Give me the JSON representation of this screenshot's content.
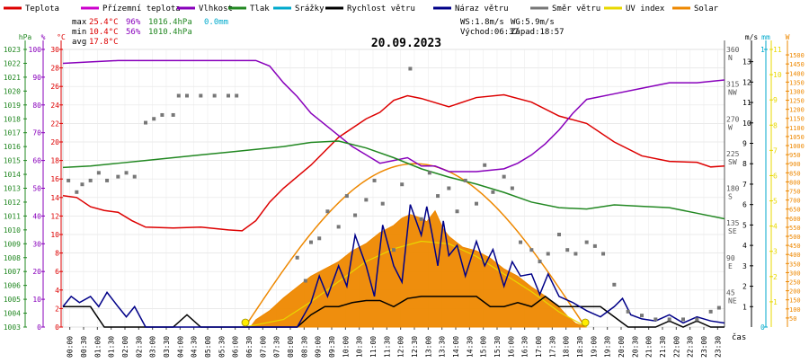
{
  "legend": [
    {
      "label": "Teplota",
      "color": "#dd0000"
    },
    {
      "label": "Přízemní teplota",
      "color": "#cc00cc"
    },
    {
      "label": "Vlhkost",
      "color": "#8800bb"
    },
    {
      "label": "Tlak",
      "color": "#228822"
    },
    {
      "label": "Srážky",
      "color": "#00aacc"
    },
    {
      "label": "Rychlost větru",
      "color": "#000000"
    },
    {
      "label": "Náraz větru",
      "color": "#000088"
    },
    {
      "label": "Směr větru",
      "color": "#777777"
    },
    {
      "label": "UV index",
      "color": "#e8d800"
    },
    {
      "label": "Solar",
      "color": "#ee8800"
    }
  ],
  "stats": {
    "max": {
      "label": "max",
      "temp": "25.4°C",
      "hum": "96%",
      "press": "1016.4hPa",
      "rain": "0.0mm"
    },
    "min": {
      "label": "min",
      "temp": "10.4°C",
      "hum": "56%",
      "press": "1010.4hPa"
    },
    "avg": {
      "label": "avg",
      "temp": "17.8°C"
    },
    "ws": "WS:1.8m/s",
    "wg": "WG:5.9m/s",
    "sunrise": "Východ:06:37",
    "sunset": "Západ:18:57"
  },
  "chart_data": {
    "type": "line",
    "title": "20.09.2023",
    "xlabel": "čas",
    "x_ticks": [
      "00:00",
      "00:30",
      "01:00",
      "01:30",
      "02:00",
      "02:30",
      "03:00",
      "03:30",
      "04:00",
      "04:30",
      "05:00",
      "05:30",
      "06:00",
      "06:30",
      "07:00",
      "07:30",
      "08:00",
      "08:30",
      "09:00",
      "09:30",
      "10:00",
      "10:30",
      "11:00",
      "11:30",
      "12:00",
      "12:30",
      "13:00",
      "13:30",
      "14:00",
      "14:30",
      "15:00",
      "15:30",
      "16:00",
      "16:30",
      "17:00",
      "17:30",
      "18:00",
      "18:30",
      "19:00",
      "19:30",
      "20:00",
      "20:30",
      "21:00",
      "21:30",
      "22:00",
      "22:30",
      "23:00",
      "23:30"
    ],
    "axes": {
      "hpa": {
        "label": "hPa",
        "color": "#228822",
        "ticks": [
          "1003",
          "1004",
          "1005",
          "1006",
          "1007",
          "1008",
          "1009",
          "1010",
          "1011",
          "1012",
          "1013",
          "1014",
          "1015",
          "1016",
          "1017",
          "1018",
          "1019",
          "1020",
          "1021",
          "1022",
          "1023"
        ],
        "range": [
          1003,
          1023
        ]
      },
      "percent": {
        "label": "%",
        "color": "#8800bb",
        "ticks": [
          "0",
          "10",
          "20",
          "30",
          "40",
          "50",
          "60",
          "70",
          "80",
          "90",
          "100"
        ],
        "range": [
          0,
          100
        ]
      },
      "celsius": {
        "label": "°C",
        "color": "#dd0000",
        "ticks": [
          "0",
          "2",
          "4",
          "6",
          "8",
          "10",
          "12",
          "14",
          "16",
          "18",
          "20",
          "22",
          "24",
          "26",
          "28",
          "30"
        ],
        "range": [
          0,
          30
        ]
      },
      "direction": {
        "ticks": [
          {
            "deg": 45,
            "deg_label": "45",
            "dir": "NE"
          },
          {
            "deg": 90,
            "deg_label": "90",
            "dir": "E"
          },
          {
            "deg": 135,
            "deg_label": "135",
            "dir": "SE"
          },
          {
            "deg": 180,
            "deg_label": "180",
            "dir": "S"
          },
          {
            "deg": 225,
            "deg_label": "225",
            "dir": "SW"
          },
          {
            "deg": 270,
            "deg_label": "270",
            "dir": "W"
          },
          {
            "deg": 315,
            "deg_label": "315",
            "dir": "NW"
          },
          {
            "deg": 360,
            "deg_label": "360",
            "dir": "N"
          }
        ],
        "range": [
          0,
          360
        ]
      },
      "ms": {
        "label": "m/s",
        "color": "#000000",
        "ticks": [
          "1",
          "2",
          "3",
          "4",
          "5",
          "6",
          "7",
          "8",
          "9",
          "10",
          "11",
          "12",
          "13"
        ],
        "range": [
          0,
          13.6
        ]
      },
      "mm": {
        "label": "mm",
        "color": "#00aacc",
        "ticks": [
          "0",
          "1"
        ],
        "range": [
          0,
          1
        ]
      },
      "uv": {
        "label": "",
        "color": "#e8d800",
        "ticks": [
          "1",
          "2",
          "3",
          "4",
          "5",
          "6",
          "7",
          "8",
          "9",
          "10",
          "11"
        ],
        "range": [
          0,
          11
        ]
      },
      "solar": {
        "label": "W",
        "color": "#ee8800",
        "ticks": [
          "50",
          "100",
          "150",
          "200",
          "250",
          "300",
          "350",
          "400",
          "450",
          "500",
          "550",
          "600",
          "650",
          "700",
          "750",
          "800",
          "850",
          "900",
          "950",
          "1000",
          "1050",
          "1100",
          "1150",
          "1200",
          "1250",
          "1300",
          "1350",
          "1400",
          "1450",
          "1500"
        ],
        "range": [
          0,
          1530
        ]
      }
    },
    "series": [
      {
        "name": "Teplota",
        "color": "#dd0000",
        "axis": "celsius",
        "x": [
          0,
          0.5,
          1,
          1.5,
          2,
          2.5,
          3,
          4,
          5,
          6,
          6.5,
          7,
          7.5,
          8,
          9,
          10,
          11,
          11.5,
          12,
          12.5,
          13,
          14,
          15,
          16,
          17,
          18,
          19,
          20,
          21,
          22,
          23,
          23.5,
          24
        ],
        "y": [
          14.2,
          14,
          13,
          12.6,
          12.4,
          11.5,
          10.8,
          10.7,
          10.8,
          10.5,
          10.4,
          11.5,
          13.5,
          15,
          17.5,
          20.5,
          22.5,
          23.2,
          24.5,
          25,
          24.7,
          23.8,
          24.8,
          25.1,
          24.3,
          22.8,
          22,
          20,
          18.5,
          17.9,
          17.8,
          17.3,
          17.4
        ]
      },
      {
        "name": "Vlhkost",
        "color": "#8800bb",
        "axis": "percent",
        "x": [
          0,
          1,
          2,
          3,
          4,
          5,
          6,
          6.5,
          7,
          7.5,
          8,
          8.5,
          9,
          10,
          10.5,
          11,
          11.5,
          12,
          12.5,
          13,
          13.5,
          14,
          14.5,
          15,
          16,
          16.5,
          17,
          17.5,
          18,
          18.5,
          19,
          20,
          21,
          22,
          23,
          24
        ],
        "y": [
          95,
          95.5,
          96,
          96,
          96,
          96,
          96,
          96,
          96,
          94,
          88,
          83,
          77,
          69,
          65,
          62,
          59,
          60,
          61,
          58,
          58,
          56,
          56,
          56,
          57,
          59,
          62,
          66,
          71,
          77,
          82,
          84,
          86,
          88,
          88,
          89
        ]
      },
      {
        "name": "Tlak",
        "color": "#228822",
        "axis": "hpa",
        "x": [
          0,
          1,
          2,
          3,
          4,
          5,
          6,
          7,
          8,
          9,
          10,
          11,
          12,
          13,
          14,
          15,
          16,
          17,
          18,
          19,
          20,
          21,
          22,
          23,
          24
        ],
        "y": [
          1014.5,
          1014.6,
          1014.8,
          1015,
          1015.2,
          1015.4,
          1015.6,
          1015.8,
          1016.0,
          1016.3,
          1016.4,
          1015.9,
          1015.2,
          1014.4,
          1013.8,
          1013.3,
          1012.7,
          1012.0,
          1011.6,
          1011.5,
          1011.8,
          1011.7,
          1011.6,
          1011.2,
          1010.8
        ]
      },
      {
        "name": "Rychlost větru",
        "color": "#000000",
        "axis": "ms",
        "x": [
          0,
          0.5,
          1,
          1.5,
          2,
          2.5,
          3,
          4,
          4.5,
          5,
          6,
          7,
          7.5,
          8,
          8.5,
          9,
          9.5,
          10,
          10.5,
          11,
          11.5,
          12,
          12.5,
          13,
          13.5,
          14,
          14.5,
          15,
          15.5,
          16,
          16.5,
          17,
          17.5,
          18,
          18.5,
          19,
          19.5,
          20,
          20.5,
          21,
          21.5,
          22,
          22.5,
          23,
          23.5,
          24
        ],
        "y": [
          1,
          1,
          1,
          0,
          0,
          0,
          0,
          0,
          0.6,
          0,
          0,
          0,
          0,
          0,
          0,
          0.6,
          1,
          1,
          1.2,
          1.3,
          1.3,
          1,
          1.4,
          1.5,
          1.5,
          1.5,
          1.5,
          1.5,
          1,
          1,
          1.2,
          1,
          1.5,
          1,
          1,
          1,
          1,
          0.5,
          0,
          0,
          0,
          0.3,
          0,
          0.3,
          0,
          0
        ]
      },
      {
        "name": "Náraz větru",
        "color": "#000088",
        "axis": "ms",
        "x": [
          0,
          0.3,
          0.6,
          1,
          1.3,
          1.6,
          2,
          2.3,
          2.6,
          3,
          3.5,
          4,
          5,
          6,
          7,
          8,
          8.5,
          9,
          9.3,
          9.6,
          10,
          10.3,
          10.6,
          11,
          11.3,
          11.6,
          12,
          12.3,
          12.6,
          13,
          13.2,
          13.4,
          13.6,
          13.8,
          14,
          14.3,
          14.6,
          15,
          15.3,
          15.6,
          16,
          16.3,
          16.6,
          17,
          17.3,
          17.6,
          18,
          18.5,
          19,
          19.5,
          20,
          20.3,
          20.6,
          21,
          21.5,
          22,
          22.5,
          23,
          23.5,
          24
        ],
        "y": [
          1,
          1.5,
          1.2,
          1.5,
          1,
          1.7,
          1,
          0.5,
          1,
          0,
          0,
          0,
          0,
          0,
          0,
          0,
          0,
          1.2,
          2.5,
          1.5,
          3,
          2,
          4.5,
          3,
          1.5,
          5,
          3,
          2.2,
          6,
          4.5,
          5.9,
          4.5,
          3,
          5.2,
          3.5,
          4,
          2.5,
          4.2,
          3,
          3.8,
          2,
          3.2,
          2.5,
          2.6,
          1.6,
          2.6,
          1.5,
          1.2,
          0.8,
          0.5,
          1,
          1.4,
          0.6,
          0.4,
          0.3,
          0.6,
          0.2,
          0.5,
          0.3,
          0.2
        ]
      },
      {
        "name": "Směr větru",
        "color": "#777777",
        "axis": "direction",
        "style": "dots",
        "x": [
          0.2,
          0.5,
          0.7,
          1.0,
          1.3,
          1.6,
          2.0,
          2.3,
          2.6,
          3.0,
          3.3,
          3.6,
          4.0,
          4.2,
          4.5,
          5.0,
          5.5,
          6.0,
          6.3,
          8.5,
          8.8,
          9.0,
          9.3,
          9.6,
          10.0,
          10.3,
          10.6,
          11.0,
          11.3,
          11.6,
          12.0,
          12.3,
          12.6,
          13.0,
          13.3,
          13.6,
          14.0,
          14.3,
          14.6,
          15.0,
          15.3,
          15.6,
          16.0,
          16.3,
          16.6,
          17.0,
          17.3,
          17.6,
          18.0,
          18.3,
          18.6,
          19.0,
          19.3,
          19.6,
          20.0,
          20.5,
          21.0,
          21.5,
          22.0,
          22.5,
          23.0,
          23.5,
          23.8
        ],
        "y": [
          190,
          175,
          185,
          190,
          200,
          190,
          195,
          200,
          195,
          265,
          270,
          275,
          275,
          300,
          300,
          300,
          300,
          300,
          300,
          90,
          60,
          110,
          115,
          150,
          130,
          170,
          145,
          165,
          190,
          160,
          100,
          185,
          335,
          140,
          200,
          170,
          180,
          150,
          190,
          160,
          210,
          175,
          195,
          180,
          110,
          100,
          85,
          95,
          120,
          100,
          95,
          110,
          105,
          95,
          55,
          20,
          15,
          10,
          10,
          10,
          10,
          20,
          25
        ]
      }
    ],
    "solar_series": {
      "name": "Solar",
      "color": "#ee8800",
      "x": [
        6.8,
        7,
        7.5,
        8,
        8.5,
        9,
        9.5,
        10,
        10.5,
        11,
        11.5,
        12,
        12.3,
        12.6,
        13,
        13.2,
        13.5,
        13.8,
        14,
        14.5,
        15,
        15.5,
        16,
        16.5,
        17,
        17.5,
        18,
        18.3,
        18.6,
        19
      ],
      "y": [
        0,
        40,
        90,
        160,
        220,
        280,
        320,
        360,
        420,
        460,
        520,
        560,
        600,
        620,
        600,
        580,
        640,
        540,
        500,
        440,
        420,
        380,
        320,
        280,
        220,
        170,
        110,
        60,
        20,
        0
      ]
    },
    "uv_series": {
      "name": "UV index",
      "color": "#e8d800",
      "x": [
        6.6,
        8,
        9,
        10,
        11,
        12,
        13,
        14,
        15,
        16,
        17,
        18,
        19
      ],
      "y": [
        0,
        0.3,
        1,
        1.8,
        2.6,
        3.1,
        3.4,
        3.3,
        2.8,
        2.1,
        1.4,
        0.6,
        0
      ]
    },
    "sun_markers": {
      "sunrise": 6.62,
      "sunset": 18.95,
      "color": "#ffee00"
    }
  }
}
